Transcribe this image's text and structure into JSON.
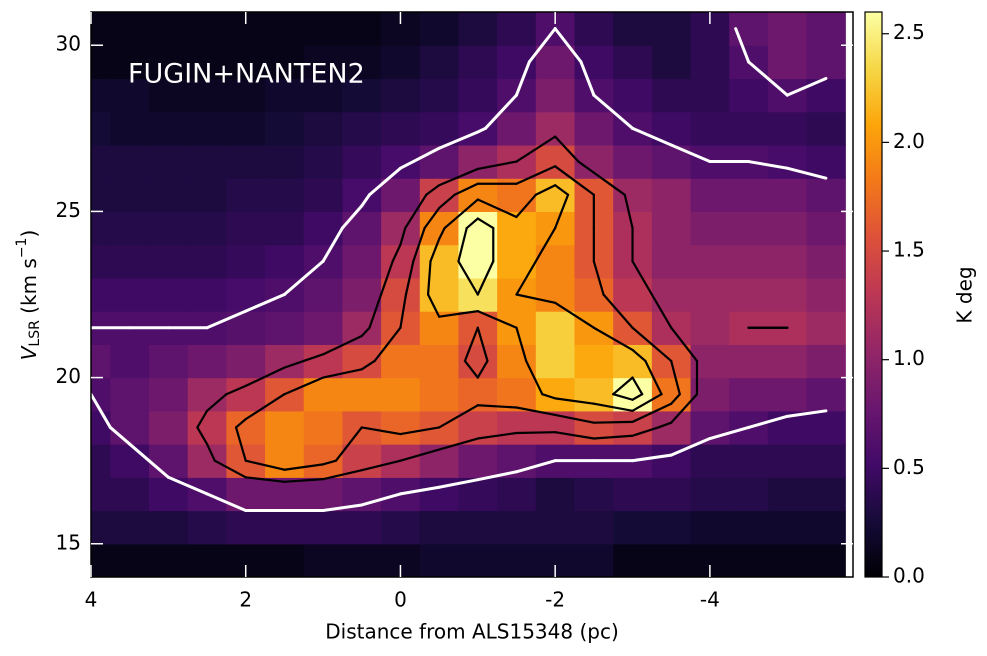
{
  "chart_data": {
    "type": "heatmap",
    "annotation": "FUGIN+NANTEN2",
    "xlabel": "Distance from ALS15348 (pc)",
    "ylabel": [
      "V",
      "LSR",
      " (km s",
      "−1",
      ")"
    ],
    "colorbar_label": "K deg",
    "xlim": [
      4,
      -5.85
    ],
    "ylim": [
      14,
      31
    ],
    "xticks": [
      4,
      2,
      0,
      -2,
      -4
    ],
    "yticks": [
      15,
      20,
      25,
      30
    ],
    "vlim": [
      0,
      2.6
    ],
    "cticks": [
      {
        "value": 0,
        "label": "0.0"
      },
      0.5,
      {
        "value": 1,
        "label": "1.0"
      },
      1.5,
      {
        "value": 2,
        "label": "2.0"
      },
      2.5
    ],
    "colormap": [
      "#000004",
      "#160b39",
      "#420a68",
      "#6a176e",
      "#932667",
      "#bc3754",
      "#dd513a",
      "#f37819",
      "#fca50a",
      "#f6d746",
      "#fcffa4"
    ],
    "contour_levels": [
      0.6,
      1.2,
      1.6,
      2.0,
      2.4
    ],
    "contour_colors": [
      "#ffffff",
      "#000000",
      "#000000",
      "#000000",
      "#000000"
    ],
    "x": [
      4,
      3.5,
      3,
      2.5,
      2,
      1.5,
      1,
      0.5,
      0,
      -0.5,
      -1,
      -1.5,
      -2,
      -2.5,
      -3,
      -3.5,
      -4,
      -4.5,
      -5,
      -5.5
    ],
    "y": [
      14.5,
      15.5,
      16.5,
      17.5,
      18.5,
      19.5,
      20.5,
      21.5,
      22.5,
      23.5,
      24.5,
      25.5,
      26.5,
      27.5,
      28.5,
      29.5,
      30.5
    ],
    "z": [
      [
        0.1,
        0.1,
        0.1,
        0.1,
        0.1,
        0.1,
        0.15,
        0.15,
        0.15,
        0.2,
        0.2,
        0.2,
        0.2,
        0.2,
        0.1,
        0.1,
        0.1,
        0.1,
        0.1,
        0.1
      ],
      [
        0.3,
        0.3,
        0.3,
        0.35,
        0.4,
        0.4,
        0.4,
        0.4,
        0.35,
        0.3,
        0.3,
        0.3,
        0.3,
        0.3,
        0.25,
        0.25,
        0.2,
        0.2,
        0.2,
        0.2
      ],
      [
        0.4,
        0.4,
        0.5,
        0.6,
        0.8,
        0.8,
        0.8,
        0.7,
        0.6,
        0.5,
        0.45,
        0.4,
        0.3,
        0.35,
        0.4,
        0.4,
        0.35,
        0.35,
        0.3,
        0.3
      ],
      [
        0.4,
        0.5,
        0.7,
        1.1,
        1.6,
        1.9,
        1.7,
        1.4,
        1.2,
        1.0,
        0.8,
        0.7,
        0.6,
        0.6,
        0.6,
        0.5,
        0.4,
        0.4,
        0.4,
        0.4
      ],
      [
        0.5,
        0.7,
        0.9,
        1.3,
        1.7,
        1.9,
        1.8,
        1.6,
        1.7,
        1.6,
        1.4,
        1.3,
        1.3,
        1.5,
        1.4,
        1.1,
        0.7,
        0.6,
        0.5,
        0.5
      ],
      [
        0.6,
        0.7,
        0.8,
        1.1,
        1.3,
        1.6,
        1.9,
        1.9,
        1.9,
        1.8,
        1.7,
        1.8,
        2.1,
        2.2,
        2.6,
        1.8,
        0.9,
        0.8,
        0.8,
        0.7
      ],
      [
        0.7,
        0.6,
        0.7,
        0.8,
        0.9,
        1.1,
        1.3,
        1.5,
        1.8,
        1.8,
        1.5,
        1.9,
        2.3,
        2.1,
        2.2,
        1.6,
        1.0,
        1.0,
        1.0,
        0.9
      ],
      [
        0.6,
        0.6,
        0.6,
        0.6,
        0.65,
        0.7,
        0.8,
        1.1,
        1.6,
        1.9,
        1.6,
        2.0,
        2.3,
        2.0,
        1.6,
        1.2,
        1.1,
        1.2,
        1.2,
        1.1
      ],
      [
        0.5,
        0.5,
        0.5,
        0.5,
        0.55,
        0.6,
        0.7,
        0.9,
        1.5,
        2.2,
        2.4,
        2.0,
        1.9,
        1.7,
        1.3,
        1.1,
        1.1,
        1.1,
        1.1,
        1.0
      ],
      [
        0.4,
        0.4,
        0.4,
        0.4,
        0.45,
        0.5,
        0.6,
        0.8,
        1.3,
        2.2,
        2.6,
        2.1,
        1.9,
        1.6,
        1.2,
        1.0,
        1.0,
        1.0,
        1.0,
        0.9
      ],
      [
        0.35,
        0.35,
        0.35,
        0.35,
        0.4,
        0.4,
        0.5,
        0.7,
        1.1,
        1.9,
        2.6,
        2.1,
        2.0,
        1.6,
        1.2,
        1.0,
        0.9,
        0.9,
        0.9,
        0.8
      ],
      [
        0.3,
        0.3,
        0.3,
        0.3,
        0.35,
        0.35,
        0.4,
        0.55,
        0.8,
        1.4,
        1.9,
        1.8,
        2.2,
        1.6,
        1.1,
        1.0,
        0.8,
        0.8,
        0.8,
        0.7
      ],
      [
        0.3,
        0.3,
        0.3,
        0.3,
        0.3,
        0.3,
        0.35,
        0.45,
        0.55,
        0.7,
        1.0,
        1.2,
        1.5,
        1.0,
        0.8,
        0.7,
        0.6,
        0.6,
        0.55,
        0.5
      ],
      [
        0.25,
        0.2,
        0.2,
        0.2,
        0.2,
        0.25,
        0.3,
        0.35,
        0.4,
        0.45,
        0.55,
        0.8,
        1.1,
        0.8,
        0.6,
        0.5,
        0.45,
        0.45,
        0.45,
        0.4
      ],
      [
        0.2,
        0.2,
        0.15,
        0.15,
        0.15,
        0.2,
        0.2,
        0.25,
        0.3,
        0.35,
        0.45,
        0.6,
        0.9,
        0.6,
        0.5,
        0.4,
        0.4,
        0.5,
        0.6,
        0.5
      ],
      [
        0.1,
        0.1,
        0.1,
        0.1,
        0.1,
        0.1,
        0.15,
        0.15,
        0.2,
        0.3,
        0.4,
        0.5,
        0.8,
        0.5,
        0.4,
        0.3,
        0.4,
        0.6,
        0.8,
        0.7
      ],
      [
        0.1,
        0.1,
        0.1,
        0.1,
        0.1,
        0.1,
        0.1,
        0.1,
        0.15,
        0.2,
        0.3,
        0.4,
        0.6,
        0.4,
        0.3,
        0.3,
        0.4,
        0.7,
        0.8,
        0.7
      ]
    ]
  }
}
